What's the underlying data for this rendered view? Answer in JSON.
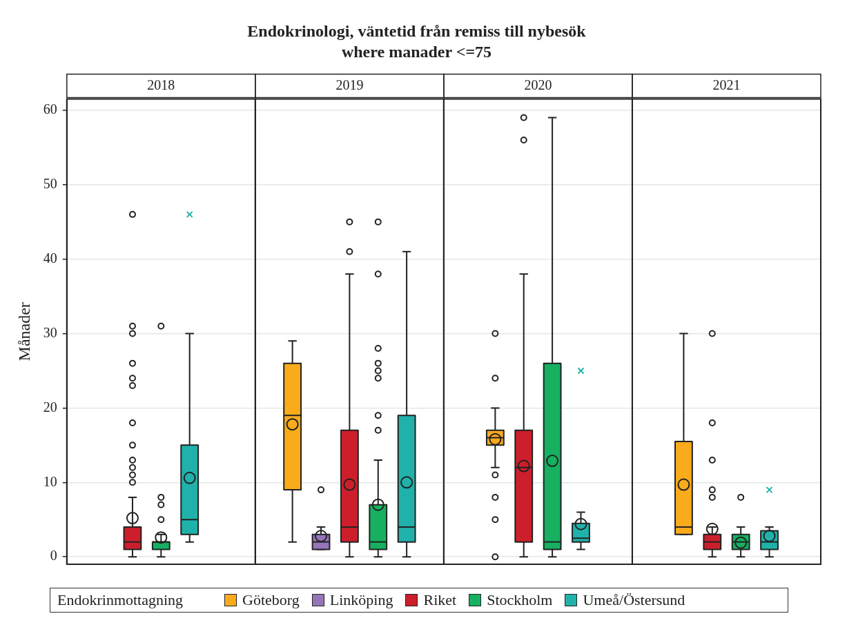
{
  "chart_data": {
    "type": "box",
    "title": "Endokrinologi, väntetid från remiss till nybesök",
    "subtitle": "where manader <=75",
    "ylabel": "Månader",
    "legend_title": "Endokrinmottagning",
    "legend": "bottom",
    "grid": "y",
    "categories": [
      "2018",
      "2019",
      "2020",
      "2021"
    ],
    "ylim": [
      -1,
      61.5
    ],
    "yticks": [
      0,
      10,
      20,
      30,
      40,
      50,
      60
    ],
    "series": [
      {
        "name": "Göteborg",
        "color": "#f9ab1c",
        "marker": "circle",
        "boxes": [
          null,
          {
            "low": 2,
            "q1": 9,
            "median": 19,
            "q3": 26,
            "high": 29,
            "mean": 17.8
          },
          {
            "low": 12,
            "q1": 15,
            "median": 16,
            "q3": 17,
            "high": 20,
            "mean": 15.8,
            "outliers": [
              0,
              5,
              8,
              11,
              24,
              30
            ]
          },
          {
            "low": 3,
            "q1": 3,
            "median": 4,
            "q3": 15.5,
            "high": 30,
            "mean": 9.7
          }
        ]
      },
      {
        "name": "Linköping",
        "color": "#9575b8",
        "marker": "circle",
        "boxes": [
          null,
          {
            "low": 1,
            "q1": 1,
            "median": 2,
            "q3": 3,
            "high": 4,
            "mean": 2.8,
            "outliers": [
              9
            ]
          },
          null,
          null
        ]
      },
      {
        "name": "Riket",
        "color": "#cc1f2b",
        "marker": "circle",
        "boxes": [
          {
            "low": 0,
            "q1": 1,
            "median": 2,
            "q3": 4,
            "high": 8,
            "mean": 5.2,
            "outliers": [
              10,
              11,
              12,
              13,
              15,
              18,
              23,
              24,
              26,
              30,
              31,
              46
            ]
          },
          {
            "low": 0,
            "q1": 2,
            "median": 4,
            "q3": 17,
            "high": 38,
            "mean": 9.7,
            "outliers": [
              41,
              45
            ]
          },
          {
            "low": 0,
            "q1": 2,
            "median": 12,
            "q3": 17,
            "high": 38,
            "mean": 12.2,
            "outliers": [
              56,
              59
            ]
          },
          {
            "low": 0,
            "q1": 1,
            "median": 2,
            "q3": 3,
            "high": 4,
            "mean": 3.75,
            "outliers": [
              8,
              9,
              13,
              18,
              30
            ]
          }
        ]
      },
      {
        "name": "Stockholm",
        "color": "#16b060",
        "marker": "circle",
        "boxes": [
          {
            "low": 0,
            "q1": 1,
            "median": 2,
            "q3": 2,
            "high": 3,
            "mean": 2.6,
            "outliers": [
              5,
              7,
              8,
              31
            ]
          },
          {
            "low": 0,
            "q1": 1,
            "median": 2,
            "q3": 7,
            "high": 13,
            "mean": 7,
            "outliers": [
              17,
              19,
              24,
              25,
              26,
              28,
              38,
              45
            ]
          },
          {
            "low": 0,
            "q1": 1,
            "median": 2,
            "q3": 26,
            "high": 59,
            "mean": 12.9
          },
          {
            "low": 0,
            "q1": 1,
            "median": 2,
            "q3": 3,
            "high": 4,
            "mean": 1.9,
            "outliers": [
              8
            ]
          }
        ]
      },
      {
        "name": "Umeå/Östersund",
        "color": "#20b2aa",
        "marker": "cross",
        "boxes": [
          {
            "low": 2,
            "q1": 3,
            "median": 5,
            "q3": 15,
            "high": 30,
            "mean": 10.6,
            "outliers": [
              46
            ]
          },
          {
            "low": 0,
            "q1": 2,
            "median": 4,
            "q3": 19,
            "high": 41,
            "mean": 10
          },
          {
            "low": 1,
            "q1": 2,
            "median": 2.5,
            "q3": 4.5,
            "high": 6,
            "mean": 4.4,
            "outliers": [
              25
            ]
          },
          {
            "low": 0,
            "q1": 1,
            "median": 2,
            "q3": 3.5,
            "high": 4,
            "mean": 2.8,
            "outliers": [
              9
            ]
          }
        ]
      }
    ]
  }
}
